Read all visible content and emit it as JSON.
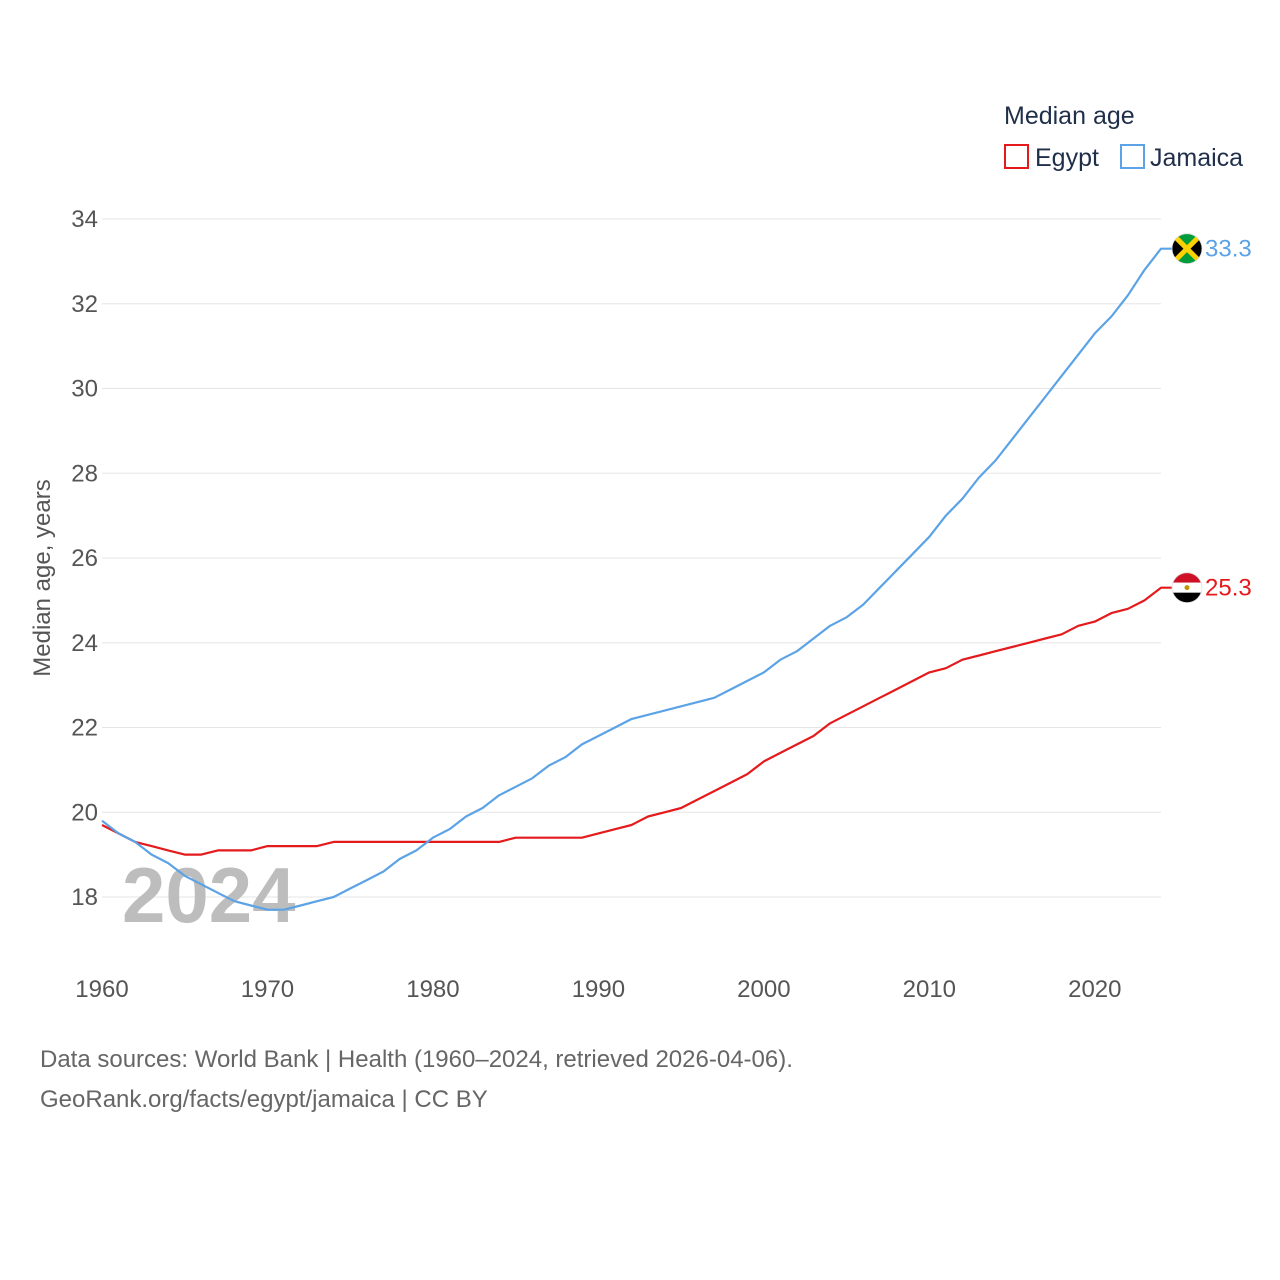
{
  "chart_data": {
    "type": "line",
    "title": "",
    "legend_title": "Median age",
    "legend_position": "top-right",
    "xlabel": "",
    "ylabel": "Median age, years",
    "xlim": [
      1960,
      2024
    ],
    "ylim": [
      17,
      34
    ],
    "x_ticks": [
      1960,
      1970,
      1980,
      1990,
      2000,
      2010,
      2020
    ],
    "y_ticks": [
      18,
      20,
      22,
      24,
      26,
      28,
      30,
      32,
      34
    ],
    "grid": true,
    "watermark_year": "2024",
    "x": [
      1960,
      1961,
      1962,
      1963,
      1964,
      1965,
      1966,
      1967,
      1968,
      1969,
      1970,
      1971,
      1972,
      1973,
      1974,
      1975,
      1976,
      1977,
      1978,
      1979,
      1980,
      1981,
      1982,
      1983,
      1984,
      1985,
      1986,
      1987,
      1988,
      1989,
      1990,
      1991,
      1992,
      1993,
      1994,
      1995,
      1996,
      1997,
      1998,
      1999,
      2000,
      2001,
      2002,
      2003,
      2004,
      2005,
      2006,
      2007,
      2008,
      2009,
      2010,
      2011,
      2012,
      2013,
      2014,
      2015,
      2016,
      2017,
      2018,
      2019,
      2020,
      2021,
      2022,
      2023,
      2024
    ],
    "series": [
      {
        "name": "Egypt",
        "color": "#e41a1c",
        "end_label": "25.3",
        "values": [
          19.7,
          19.5,
          19.3,
          19.2,
          19.1,
          19.0,
          19.0,
          19.1,
          19.1,
          19.1,
          19.2,
          19.2,
          19.2,
          19.2,
          19.3,
          19.3,
          19.3,
          19.3,
          19.3,
          19.3,
          19.3,
          19.3,
          19.3,
          19.3,
          19.3,
          19.4,
          19.4,
          19.4,
          19.4,
          19.4,
          19.5,
          19.6,
          19.7,
          19.9,
          20.0,
          20.1,
          20.3,
          20.5,
          20.7,
          20.9,
          21.2,
          21.4,
          21.6,
          21.8,
          22.1,
          22.3,
          22.5,
          22.7,
          22.9,
          23.1,
          23.3,
          23.4,
          23.6,
          23.7,
          23.8,
          23.9,
          24.0,
          24.1,
          24.2,
          24.4,
          24.5,
          24.7,
          24.8,
          25.0,
          25.3
        ]
      },
      {
        "name": "Jamaica",
        "color": "#5ba3e6",
        "end_label": "33.3",
        "values": [
          19.8,
          19.5,
          19.3,
          19.0,
          18.8,
          18.5,
          18.3,
          18.1,
          17.9,
          17.8,
          17.7,
          17.7,
          17.8,
          17.9,
          18.0,
          18.2,
          18.4,
          18.6,
          18.9,
          19.1,
          19.4,
          19.6,
          19.9,
          20.1,
          20.4,
          20.6,
          20.8,
          21.1,
          21.3,
          21.6,
          21.8,
          22.0,
          22.2,
          22.3,
          22.4,
          22.5,
          22.6,
          22.7,
          22.9,
          23.1,
          23.3,
          23.6,
          23.8,
          24.1,
          24.4,
          24.6,
          24.9,
          25.3,
          25.7,
          26.1,
          26.5,
          27.0,
          27.4,
          27.9,
          28.3,
          28.8,
          29.3,
          29.8,
          30.3,
          30.8,
          31.3,
          31.7,
          32.2,
          32.8,
          33.3
        ]
      }
    ]
  },
  "footer": {
    "line1": "Data sources: World Bank | Health (1960–2024, retrieved 2026-04-06).",
    "line2": "GeoRank.org/facts/egypt/jamaica | CC BY"
  }
}
